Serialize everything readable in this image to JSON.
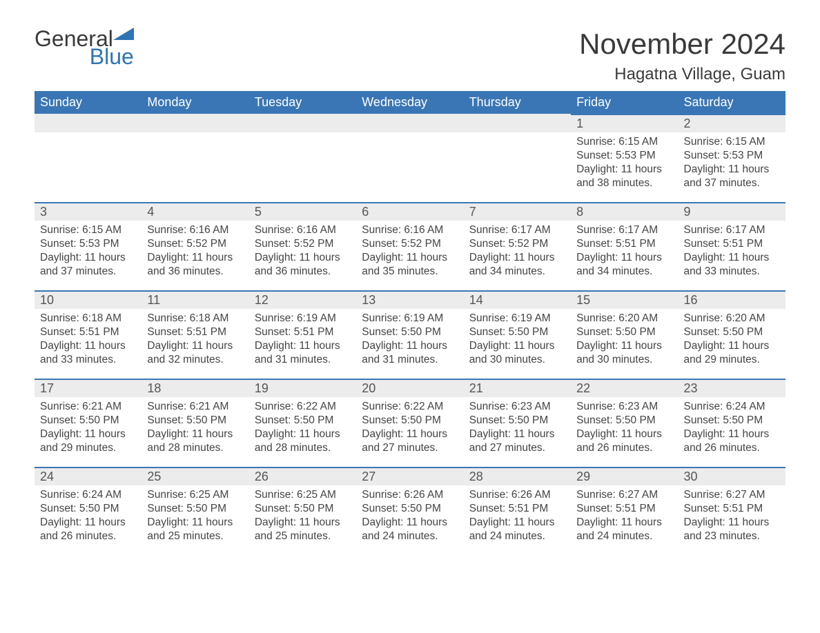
{
  "brand": {
    "general": "General",
    "blue": "Blue",
    "brand_color": "#2f74b5"
  },
  "title": "November 2024",
  "location": "Hagatna Village, Guam",
  "colors": {
    "header_bg": "#3a76b5",
    "header_text": "#ffffff",
    "daynum_bg": "#ececec",
    "daynum_border": "#3a76b5",
    "body_text": "#444444",
    "page_bg": "#ffffff"
  },
  "fonts": {
    "title_size": 42,
    "location_size": 24,
    "header_size": 18,
    "daynum_size": 18,
    "body_size": 15.5
  },
  "weekdays": [
    "Sunday",
    "Monday",
    "Tuesday",
    "Wednesday",
    "Thursday",
    "Friday",
    "Saturday"
  ],
  "labels": {
    "sunrise": "Sunrise:",
    "sunset": "Sunset:",
    "daylight": "Daylight:"
  },
  "weeks": [
    [
      null,
      null,
      null,
      null,
      null,
      {
        "n": "1",
        "sunrise": "6:15 AM",
        "sunset": "5:53 PM",
        "daylight": "11 hours and 38 minutes."
      },
      {
        "n": "2",
        "sunrise": "6:15 AM",
        "sunset": "5:53 PM",
        "daylight": "11 hours and 37 minutes."
      }
    ],
    [
      {
        "n": "3",
        "sunrise": "6:15 AM",
        "sunset": "5:53 PM",
        "daylight": "11 hours and 37 minutes."
      },
      {
        "n": "4",
        "sunrise": "6:16 AM",
        "sunset": "5:52 PM",
        "daylight": "11 hours and 36 minutes."
      },
      {
        "n": "5",
        "sunrise": "6:16 AM",
        "sunset": "5:52 PM",
        "daylight": "11 hours and 36 minutes."
      },
      {
        "n": "6",
        "sunrise": "6:16 AM",
        "sunset": "5:52 PM",
        "daylight": "11 hours and 35 minutes."
      },
      {
        "n": "7",
        "sunrise": "6:17 AM",
        "sunset": "5:52 PM",
        "daylight": "11 hours and 34 minutes."
      },
      {
        "n": "8",
        "sunrise": "6:17 AM",
        "sunset": "5:51 PM",
        "daylight": "11 hours and 34 minutes."
      },
      {
        "n": "9",
        "sunrise": "6:17 AM",
        "sunset": "5:51 PM",
        "daylight": "11 hours and 33 minutes."
      }
    ],
    [
      {
        "n": "10",
        "sunrise": "6:18 AM",
        "sunset": "5:51 PM",
        "daylight": "11 hours and 33 minutes."
      },
      {
        "n": "11",
        "sunrise": "6:18 AM",
        "sunset": "5:51 PM",
        "daylight": "11 hours and 32 minutes."
      },
      {
        "n": "12",
        "sunrise": "6:19 AM",
        "sunset": "5:51 PM",
        "daylight": "11 hours and 31 minutes."
      },
      {
        "n": "13",
        "sunrise": "6:19 AM",
        "sunset": "5:50 PM",
        "daylight": "11 hours and 31 minutes."
      },
      {
        "n": "14",
        "sunrise": "6:19 AM",
        "sunset": "5:50 PM",
        "daylight": "11 hours and 30 minutes."
      },
      {
        "n": "15",
        "sunrise": "6:20 AM",
        "sunset": "5:50 PM",
        "daylight": "11 hours and 30 minutes."
      },
      {
        "n": "16",
        "sunrise": "6:20 AM",
        "sunset": "5:50 PM",
        "daylight": "11 hours and 29 minutes."
      }
    ],
    [
      {
        "n": "17",
        "sunrise": "6:21 AM",
        "sunset": "5:50 PM",
        "daylight": "11 hours and 29 minutes."
      },
      {
        "n": "18",
        "sunrise": "6:21 AM",
        "sunset": "5:50 PM",
        "daylight": "11 hours and 28 minutes."
      },
      {
        "n": "19",
        "sunrise": "6:22 AM",
        "sunset": "5:50 PM",
        "daylight": "11 hours and 28 minutes."
      },
      {
        "n": "20",
        "sunrise": "6:22 AM",
        "sunset": "5:50 PM",
        "daylight": "11 hours and 27 minutes."
      },
      {
        "n": "21",
        "sunrise": "6:23 AM",
        "sunset": "5:50 PM",
        "daylight": "11 hours and 27 minutes."
      },
      {
        "n": "22",
        "sunrise": "6:23 AM",
        "sunset": "5:50 PM",
        "daylight": "11 hours and 26 minutes."
      },
      {
        "n": "23",
        "sunrise": "6:24 AM",
        "sunset": "5:50 PM",
        "daylight": "11 hours and 26 minutes."
      }
    ],
    [
      {
        "n": "24",
        "sunrise": "6:24 AM",
        "sunset": "5:50 PM",
        "daylight": "11 hours and 26 minutes."
      },
      {
        "n": "25",
        "sunrise": "6:25 AM",
        "sunset": "5:50 PM",
        "daylight": "11 hours and 25 minutes."
      },
      {
        "n": "26",
        "sunrise": "6:25 AM",
        "sunset": "5:50 PM",
        "daylight": "11 hours and 25 minutes."
      },
      {
        "n": "27",
        "sunrise": "6:26 AM",
        "sunset": "5:50 PM",
        "daylight": "11 hours and 24 minutes."
      },
      {
        "n": "28",
        "sunrise": "6:26 AM",
        "sunset": "5:51 PM",
        "daylight": "11 hours and 24 minutes."
      },
      {
        "n": "29",
        "sunrise": "6:27 AM",
        "sunset": "5:51 PM",
        "daylight": "11 hours and 24 minutes."
      },
      {
        "n": "30",
        "sunrise": "6:27 AM",
        "sunset": "5:51 PM",
        "daylight": "11 hours and 23 minutes."
      }
    ]
  ]
}
